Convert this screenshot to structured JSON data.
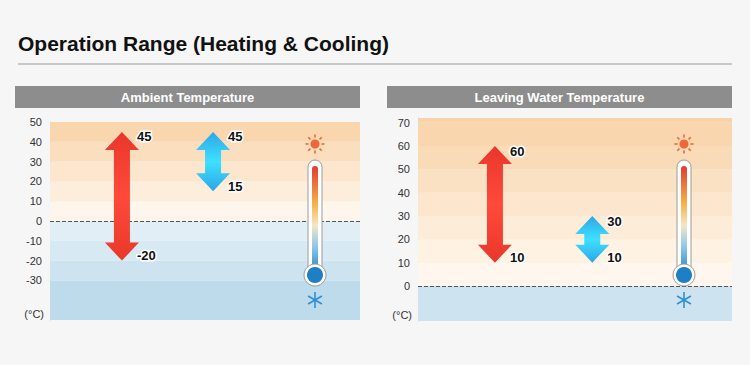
{
  "title": "Operation Range (Heating & Cooling)",
  "chart_data": [
    {
      "type": "range",
      "title": "Ambient Temperature",
      "y_label": "(°C)",
      "ylim": [
        -50,
        50
      ],
      "yticks": [
        -30,
        -20,
        -10,
        0,
        10,
        20,
        30,
        40,
        50
      ],
      "data_labels": true,
      "grid": false,
      "series": [
        {
          "color": "#e8372b",
          "values": [
            -20,
            45
          ]
        },
        {
          "color": "#2ea6e6",
          "values": [
            15,
            45
          ]
        }
      ]
    },
    {
      "type": "range",
      "title": "Leaving Water Temperature",
      "y_label": "(°C)",
      "ylim": [
        -15,
        72
      ],
      "yticks": [
        0,
        10,
        20,
        30,
        40,
        50,
        60,
        70
      ],
      "data_labels": true,
      "grid": false,
      "series": [
        {
          "color": "#e8372b",
          "values": [
            10,
            60
          ]
        },
        {
          "color": "#2ea6e6",
          "values": [
            10,
            30
          ]
        }
      ]
    }
  ]
}
